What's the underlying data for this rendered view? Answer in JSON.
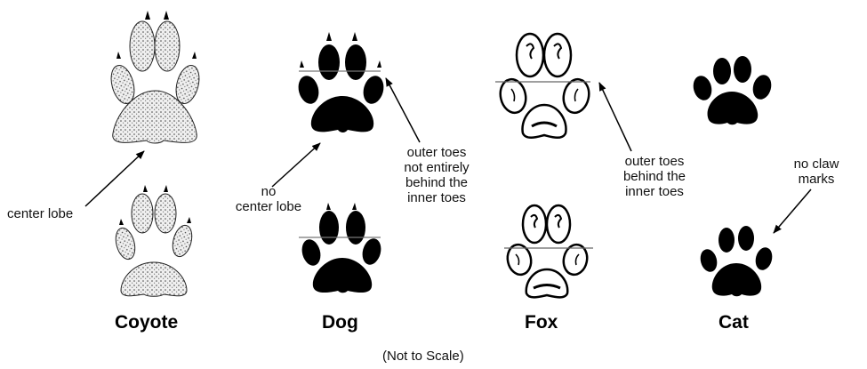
{
  "animals": [
    {
      "id": "coyote",
      "name": "Coyote"
    },
    {
      "id": "dog",
      "name": "Dog"
    },
    {
      "id": "fox",
      "name": "Fox"
    },
    {
      "id": "cat",
      "name": "Cat"
    }
  ],
  "annotations": {
    "coyote_center_lobe": [
      "center lobe"
    ],
    "dog_no_center_lobe": [
      "no",
      "center lobe"
    ],
    "dog_outer_toes": [
      "outer toes",
      "not entirely",
      "behind the",
      "inner toes"
    ],
    "fox_outer_toes": [
      "outer toes",
      "behind the",
      "inner toes"
    ],
    "cat_no_claw": [
      "no claw",
      "marks"
    ]
  },
  "footer": "(Not to Scale)",
  "colors": {
    "ink": "#000000",
    "background": "#ffffff"
  }
}
